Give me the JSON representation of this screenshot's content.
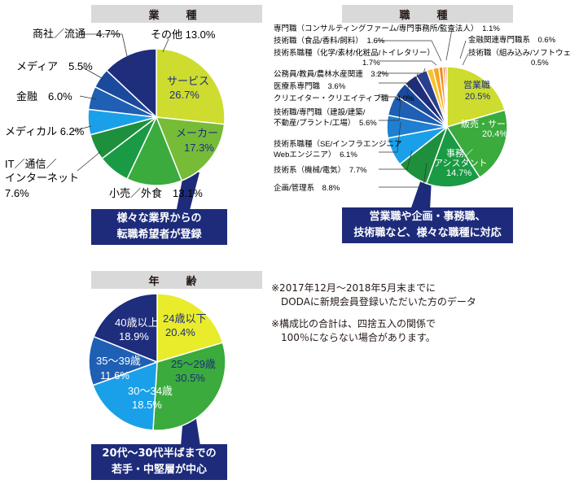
{
  "colors": {
    "header_bg": "#d9d9d9",
    "callout_bg": "#1d2b7a",
    "navy": "#1e2d7c",
    "blue": "#1f5fb4",
    "sky": "#1aa0e8",
    "green_dark": "#1a9a44",
    "green": "#3aab3c",
    "green_light": "#76bc37",
    "yellow_green": "#cddc2e",
    "yellow": "#e8ec2a",
    "orange": "#f5a623",
    "gold": "#f6c431"
  },
  "industry": {
    "header": "業　種",
    "callout": [
      "様々な業界からの",
      "転職希望者が登録"
    ],
    "chart_data": {
      "type": "pie",
      "title": "業　種",
      "slices": [
        {
          "label": "サービス",
          "value": 26.7,
          "value_text": "26.7%",
          "color": "#cddc2e"
        },
        {
          "label": "メーカー",
          "value": 17.3,
          "value_text": "17.3%",
          "color": "#76bc37"
        },
        {
          "label": "小売／外食",
          "value": 13.1,
          "value_text": "13.1%",
          "color": "#3aab3c"
        },
        {
          "label": "IT/通信/インターネット",
          "value": 7.6,
          "value_text": "7.6%",
          "color": "#1a9a44"
        },
        {
          "label": "メディカル",
          "value": 6.2,
          "value_text": "6.2%",
          "color": "#1e8f3c"
        },
        {
          "label": "金融",
          "value": 6.0,
          "value_text": "6.0%",
          "color": "#1aa0e8"
        },
        {
          "label": "メディア",
          "value": 5.5,
          "value_text": "5.5%",
          "color": "#1f5fb4"
        },
        {
          "label": "商社/流通",
          "value": 4.7,
          "value_text": "4.7%",
          "color": "#1a4a9c"
        },
        {
          "label": "その他",
          "value": 13.0,
          "value_text": "13.0%",
          "color": "#1e2d7c"
        }
      ]
    },
    "labels": {
      "service": "サービス",
      "service_val": "26.7%",
      "maker": "メーカー",
      "maker_val": "17.3%",
      "retail": "小売／外食　13.1%",
      "it_1": "IT／通信／",
      "it_2": "インターネット",
      "it_val": "7.6%",
      "medical": "メディカル 6.2%",
      "finance": "金融　6.0%",
      "media": "メディア　5.5%",
      "trading": "商社／流通　4.7%",
      "other": "その他 13.0%"
    }
  },
  "occupation": {
    "header": "職　種",
    "callout": [
      "営業職や企画・事務職、",
      "技術職など、様々な職種に対応"
    ],
    "chart_data": {
      "type": "pie",
      "title": "職　種",
      "slices": [
        {
          "label": "営業職",
          "value": 20.5,
          "value_text": "20.5%",
          "color": "#cddc2e"
        },
        {
          "label": "販売・サービス職",
          "value": 20.4,
          "value_text": "20.4%",
          "color": "#3aab3c"
        },
        {
          "label": "事務/アシスタント",
          "value": 14.7,
          "value_text": "14.7%",
          "color": "#1a9a44"
        },
        {
          "label": "企画/管理系",
          "value": 8.8,
          "value_text": "8.8%",
          "color": "#1e8f3c"
        },
        {
          "label": "技術系（機械/電気）",
          "value": 7.7,
          "value_text": "7.7%",
          "color": "#1aa0e8"
        },
        {
          "label": "技術系職種（SE/インフラエンジニア Webエンジニア）",
          "value": 6.1,
          "value_text": "6.1%",
          "color": "#1f7fd0"
        },
        {
          "label": "技術職/専門職（建設/建築/不動産/プラント/工場）",
          "value": 5.6,
          "value_text": "5.6%",
          "color": "#1f5fb4"
        },
        {
          "label": "クリエイター・クリエイティブ職",
          "value": 4.0,
          "value_text": "4.0%",
          "color": "#1a4a9c"
        },
        {
          "label": "医療系専門職",
          "value": 3.6,
          "value_text": "3.6%",
          "color": "#1e2d7c"
        },
        {
          "label": "公務員/教員/農林水産関連",
          "value": 3.2,
          "value_text": "3.2%",
          "color": "#2a3f8f"
        },
        {
          "label": "技術系職種（化学/素材/化粧品/トイレタリー）",
          "value": 1.7,
          "value_text": "1.7%",
          "color": "#f6c431"
        },
        {
          "label": "技術職（食品/香料/飼料）",
          "value": 1.6,
          "value_text": "1.6%",
          "color": "#f5a623"
        },
        {
          "label": "専門職（コンサルティングファーム/専門事務所/監査法人）",
          "value": 1.1,
          "value_text": "1.1%",
          "color": "#f08c1e"
        },
        {
          "label": "金融関連専門職系",
          "value": 0.6,
          "value_text": "0.6%",
          "color": "#e9762a"
        },
        {
          "label": "技術職（組み込み/ソフトウェア）",
          "value": 0.5,
          "value_text": "0.5%",
          "color": "#d9602a"
        }
      ]
    },
    "labels": {
      "eigyo": "営業職",
      "eigyo_val": "20.5%",
      "hanbai": "販売・サービス職",
      "hanbai_val": "20.4%",
      "jimu_1": "事務／",
      "jimu_2": "アシスタント",
      "jimu_val": "14.7%",
      "l1": "専門職（コンサルティングファーム/専門事務所/監査法人）　1.1%",
      "l2": "技術職（食品/香料/飼料）　1.6%",
      "l3a": "技術系職種（化学/素材/化粧品/トイレタリー）",
      "l3b": "1.7%",
      "l4": "公務員/教員/農林水産関連　3.2%",
      "l5": "医療系専門職　3.6%",
      "l6": "クリエイター・クリエイティブ職　4.0%",
      "l7a": "技術職/専門職（建設/建築/",
      "l7b": "不動産/プラント/工場）　5.6%",
      "l8a": "技術系職種（SE/インフラエンジニア",
      "l8b": "Webエンジニア）　6.1%",
      "l9": "技術系（機械/電気）　7.7%",
      "l10": "企画/管理系　8.8%",
      "r1": "金融関連専門職系　0.6%",
      "r2": "技術職（組み込み/ソフトウェア）",
      "r2v": "0.5%"
    }
  },
  "age": {
    "header": "年　齢",
    "callout": [
      "20代～30代半ばまでの",
      "若手・中堅層が中心"
    ],
    "chart_data": {
      "type": "pie",
      "title": "年　齢",
      "slices": [
        {
          "label": "24歳以下",
          "value": 20.4,
          "value_text": "20.4%",
          "color": "#e8ec2a"
        },
        {
          "label": "25～29歳",
          "value": 30.5,
          "value_text": "30.5%",
          "color": "#3aab3c"
        },
        {
          "label": "30～34歳",
          "value": 18.5,
          "value_text": "18.5%",
          "color": "#1aa0e8"
        },
        {
          "label": "35～39歳",
          "value": 11.6,
          "value_text": "11.6%",
          "color": "#1f5fb4"
        },
        {
          "label": "40歳以上",
          "value": 18.9,
          "value_text": "18.9%",
          "color": "#1e2d7c"
        }
      ]
    },
    "labels": {
      "a24": "24歳以下",
      "a24v": "20.4%",
      "a25": "25～29歳",
      "a25v": "30.5%",
      "a30": "30～34歳",
      "a30v": "18.5%",
      "a35": "35～39歳",
      "a35v": "11.6%",
      "a40": "40歳以上",
      "a40v": "18.9%"
    }
  },
  "notes": [
    "※2017年12月～2018年5月末までに",
    "　DODAに新規会員登録いただいた方のデータ",
    "※構成比の合計は、四捨五入の関係で",
    "　100％にならない場合があります。"
  ]
}
